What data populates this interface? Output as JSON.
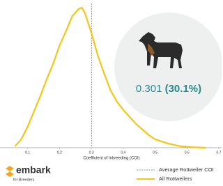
{
  "chart_data": {
    "type": "line",
    "x_label": "Coefficient of Inbreeding (COI)",
    "x": [
      0.06,
      0.08,
      0.1,
      0.12,
      0.14,
      0.16,
      0.18,
      0.2,
      0.22,
      0.24,
      0.26,
      0.27,
      0.28,
      0.3,
      0.32,
      0.34,
      0.36,
      0.38,
      0.4,
      0.42,
      0.44,
      0.46,
      0.48,
      0.5,
      0.54,
      0.58,
      0.62,
      0.66
    ],
    "series": [
      {
        "name": "All Rottweilers",
        "color": "#f5c518",
        "values": [
          0.1,
          0.6,
          1.5,
          2.6,
          3.7,
          4.9,
          6.0,
          7.3,
          8.3,
          9.4,
          9.9,
          10.0,
          9.6,
          8.2,
          6.6,
          5.3,
          4.1,
          3.3,
          2.7,
          2.2,
          1.7,
          1.3,
          0.9,
          0.6,
          0.3,
          0.1,
          0.03,
          0
        ]
      }
    ],
    "reference_line": {
      "value": 0.301,
      "name": "Average Rottweiler COI",
      "color": "#7a8ea8",
      "label": "0.301",
      "percent_label": "(30.1%)"
    },
    "xlim": [
      0.035,
      0.7
    ],
    "xticks": [
      0.1,
      0.2,
      0.3,
      0.4,
      0.5,
      0.6,
      0.7
    ],
    "ylim": [
      0,
      10.3
    ],
    "brand": {
      "name": "embark",
      "tagline": "for Breeders"
    }
  }
}
